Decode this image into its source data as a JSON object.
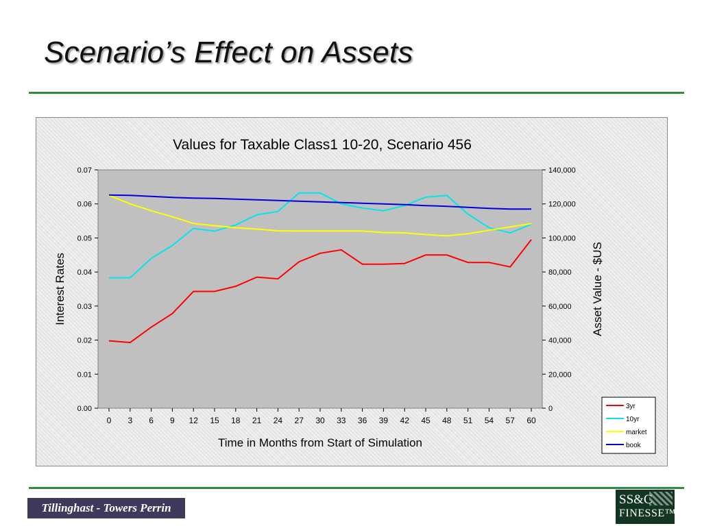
{
  "slide": {
    "title": "Scenario’s Effect on Assets",
    "footer_left_logo": "Tillinghast - Towers Perrin",
    "footer_right_logo_line1": "SS&C",
    "footer_right_logo_line2": "FINESSE™"
  },
  "colors": {
    "rule": "#2e8b43",
    "plot_background": "#c0c0c0",
    "3yr": "#ff0000",
    "10yr": "#00e5ee",
    "market": "#ffff00",
    "book": "#0000dd"
  },
  "chart_data": {
    "type": "line",
    "title": "Values for Taxable Class1 10-20, Scenario 456",
    "xlabel": "Time in Months from Start of Simulation",
    "ylabel": "Interest Rates",
    "y2label": "Asset Value - $US",
    "x": [
      0,
      3,
      6,
      9,
      12,
      15,
      18,
      21,
      24,
      27,
      30,
      33,
      36,
      39,
      42,
      45,
      48,
      51,
      54,
      57,
      60
    ],
    "x_tick_labels": [
      "0",
      "3",
      "6",
      "9",
      "12",
      "15",
      "18",
      "21",
      "24",
      "27",
      "30",
      "33",
      "36",
      "39",
      "42",
      "45",
      "48",
      "51",
      "54",
      "57",
      "60"
    ],
    "ylim": [
      0,
      0.07
    ],
    "y_tick_labels": [
      "0.00",
      "0.01",
      "0.02",
      "0.03",
      "0.04",
      "0.05",
      "0.06",
      "0.07"
    ],
    "y2lim": [
      0,
      140000
    ],
    "y2_tick_labels": [
      "0",
      "20,000",
      "40,000",
      "60,000",
      "80,000",
      "100,000",
      "120,000",
      "140,000"
    ],
    "grid": false,
    "legend_position": "bottom-right",
    "series": [
      {
        "name": "3yr",
        "axis": "left",
        "values": [
          0.0198,
          0.0193,
          0.0238,
          0.0278,
          0.0343,
          0.0343,
          0.0358,
          0.0385,
          0.038,
          0.043,
          0.0455,
          0.0465,
          0.0423,
          0.0423,
          0.0425,
          0.045,
          0.045,
          0.0428,
          0.0428,
          0.0415,
          0.0495
        ]
      },
      {
        "name": "10yr",
        "axis": "left",
        "values": [
          0.0383,
          0.0383,
          0.044,
          0.0478,
          0.0528,
          0.052,
          0.0538,
          0.0568,
          0.0578,
          0.0632,
          0.0632,
          0.06,
          0.0588,
          0.058,
          0.0595,
          0.062,
          0.0625,
          0.057,
          0.053,
          0.0515,
          0.054
        ]
      },
      {
        "name": "market",
        "axis": "right",
        "values": [
          125000,
          120000,
          116000,
          112500,
          108500,
          107200,
          106000,
          105200,
          104200,
          104100,
          104100,
          104100,
          104100,
          103200,
          103000,
          102000,
          101200,
          102500,
          104500,
          106500,
          108400
        ]
      },
      {
        "name": "book",
        "axis": "right",
        "values": [
          125200,
          125000,
          124400,
          123800,
          123400,
          123200,
          122800,
          122400,
          122000,
          121600,
          121200,
          120800,
          120400,
          120000,
          119600,
          119000,
          118600,
          118000,
          117400,
          117000,
          117000
        ]
      }
    ]
  }
}
